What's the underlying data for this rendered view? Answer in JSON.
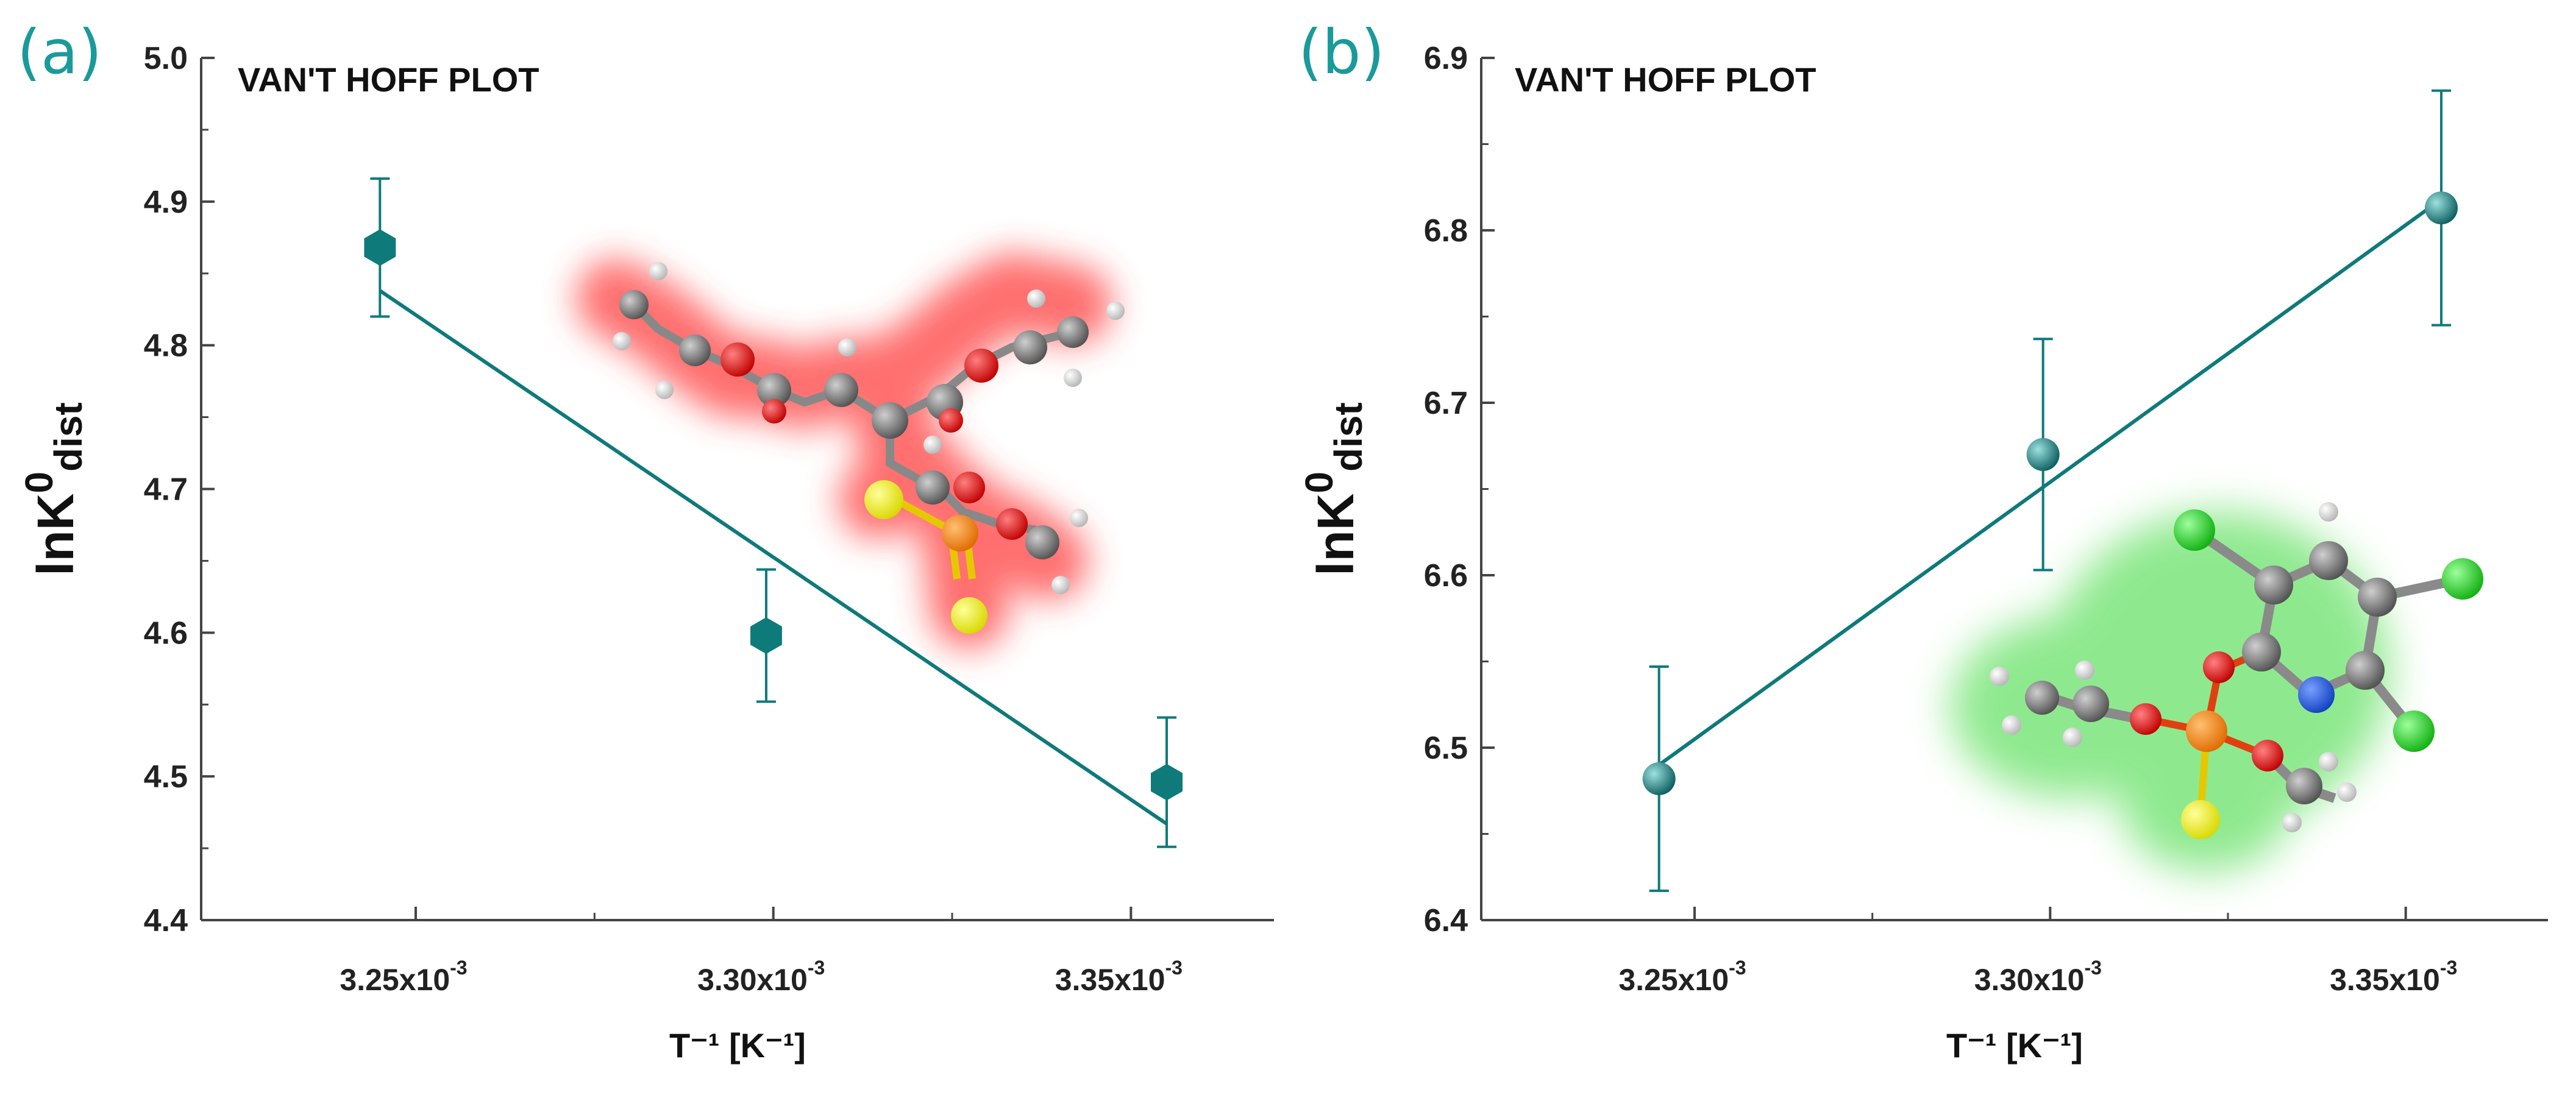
{
  "colors": {
    "accent": "#0e7a7a",
    "panel_label": "#1a9a9a"
  },
  "chart_data": [
    {
      "type": "scatter",
      "panel_label": "(a)",
      "title": "VAN'T HOFF PLOT",
      "xlabel": "T⁻¹ [K⁻¹]",
      "ylabel_main": "lnK",
      "ylabel_sup": "0",
      "ylabel_sub": "dist",
      "xlim": [
        3.22,
        3.37
      ],
      "ylim": [
        4.4,
        5.0
      ],
      "xticks": [
        3.25,
        3.3,
        3.35
      ],
      "xtick_labels": [
        "3.25x10",
        "3.30x10",
        "3.35x10"
      ],
      "xtick_exp": "-3",
      "yticks": [
        4.4,
        4.5,
        4.6,
        4.7,
        4.8,
        4.9,
        5.0
      ],
      "ytick_labels": [
        "4.4",
        "4.5",
        "4.6",
        "4.7",
        "4.8",
        "4.9",
        "5.0"
      ],
      "marker": "hexagon",
      "points": [
        {
          "x": 3.245,
          "y": 4.868,
          "err": 0.048
        },
        {
          "x": 3.299,
          "y": 4.598,
          "err": 0.046
        },
        {
          "x": 3.355,
          "y": 4.496,
          "err": 0.045
        }
      ],
      "fit": {
        "x": [
          3.245,
          3.355
        ],
        "y": [
          4.838,
          4.467
        ]
      },
      "molecule_glow": "#ff4040"
    },
    {
      "type": "scatter",
      "panel_label": "(b)",
      "title": "VAN'T HOFF PLOT",
      "xlabel": "T⁻¹ [K⁻¹]",
      "ylabel_main": "lnK",
      "ylabel_sup": "0",
      "ylabel_sub": "dist",
      "xlim": [
        3.22,
        3.37
      ],
      "ylim": [
        6.4,
        6.9
      ],
      "xticks": [
        3.25,
        3.3,
        3.35
      ],
      "xtick_labels": [
        "3.25x10",
        "3.30x10",
        "3.35x10"
      ],
      "xtick_exp": "-3",
      "yticks": [
        6.4,
        6.5,
        6.6,
        6.7,
        6.8,
        6.9
      ],
      "ytick_labels": [
        "6.4",
        "6.5",
        "6.6",
        "6.7",
        "6.8",
        "6.9"
      ],
      "marker": "sphere",
      "points": [
        {
          "x": 3.245,
          "y": 6.482,
          "err": 0.065
        },
        {
          "x": 3.299,
          "y": 6.67,
          "err": 0.067
        },
        {
          "x": 3.355,
          "y": 6.813,
          "err": 0.068
        }
      ],
      "fit": {
        "x": [
          3.245,
          3.355
        ],
        "y": [
          6.49,
          6.818
        ]
      },
      "molecule_glow": "#40d040"
    }
  ]
}
